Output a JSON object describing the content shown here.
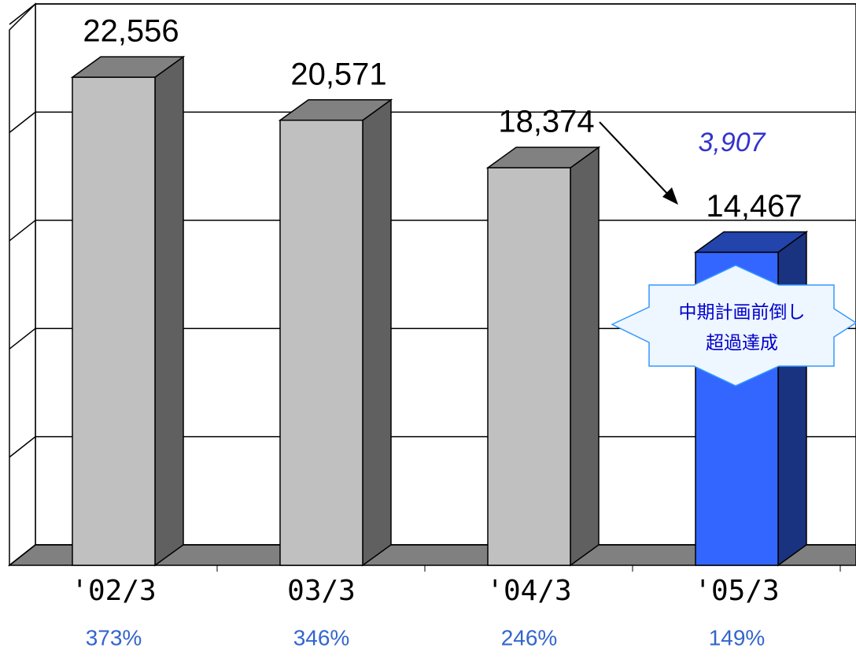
{
  "chart_data": {
    "type": "bar3d",
    "categories": [
      "'02/3",
      "03/3",
      "'04/3",
      "'05/3"
    ],
    "values": [
      22556,
      20571,
      18374,
      14467
    ],
    "value_labels": [
      "22,556",
      "20,571",
      "18,374",
      "14,467"
    ],
    "colors": [
      "#c0c0c0",
      "#c0c0c0",
      "#c0c0c0",
      "#3366ff"
    ],
    "ratios": [
      "373%",
      "346%",
      "246%",
      "149%"
    ],
    "ylim": [
      0,
      25000
    ],
    "yticks": [
      0,
      5000,
      10000,
      15000,
      20000,
      25000
    ],
    "grid": true,
    "annotation": "3,907",
    "callout": [
      "中期計画前倒し",
      "超過達成"
    ]
  }
}
